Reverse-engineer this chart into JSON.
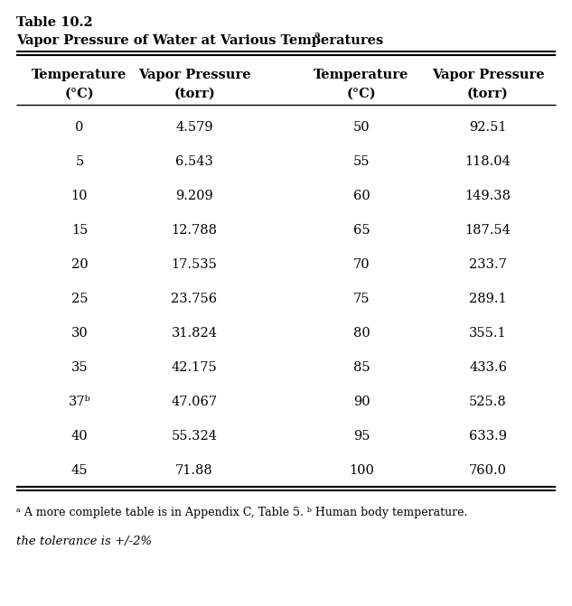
{
  "table_label": "Table 10.2",
  "title": "Vapor Pressure of Water at Various Temperatures",
  "title_superscript": "a",
  "col_headers_line1": [
    "Temperature",
    "Vapor Pressure",
    "Temperature",
    "Vapor Pressure"
  ],
  "col_subheaders": [
    "(°C)",
    "(torr)",
    "(°C)",
    "(torr)"
  ],
  "left_temp": [
    "0",
    "5",
    "10",
    "15",
    "20",
    "25",
    "30",
    "35",
    "37ᵇ",
    "40",
    "45"
  ],
  "left_vp": [
    "4.579",
    "6.543",
    "9.209",
    "12.788",
    "17.535",
    "23.756",
    "31.824",
    "42.175",
    "47.067",
    "55.324",
    "71.88"
  ],
  "right_temp": [
    "50",
    "55",
    "60",
    "65",
    "70",
    "75",
    "80",
    "85",
    "90",
    "95",
    "100"
  ],
  "right_vp": [
    "92.51",
    "118.04",
    "149.38",
    "187.54",
    "233.7",
    "289.1",
    "355.1",
    "433.6",
    "525.8",
    "633.9",
    "760.0"
  ],
  "footnote": "ᵃ A more complete table is in Appendix C, Table 5. ᵇ Human body temperature.",
  "italic_note": "the tolerance is +/-2%",
  "bg_color": "#ffffff",
  "text_color": "#000000",
  "font_family": "DejaVu Serif"
}
